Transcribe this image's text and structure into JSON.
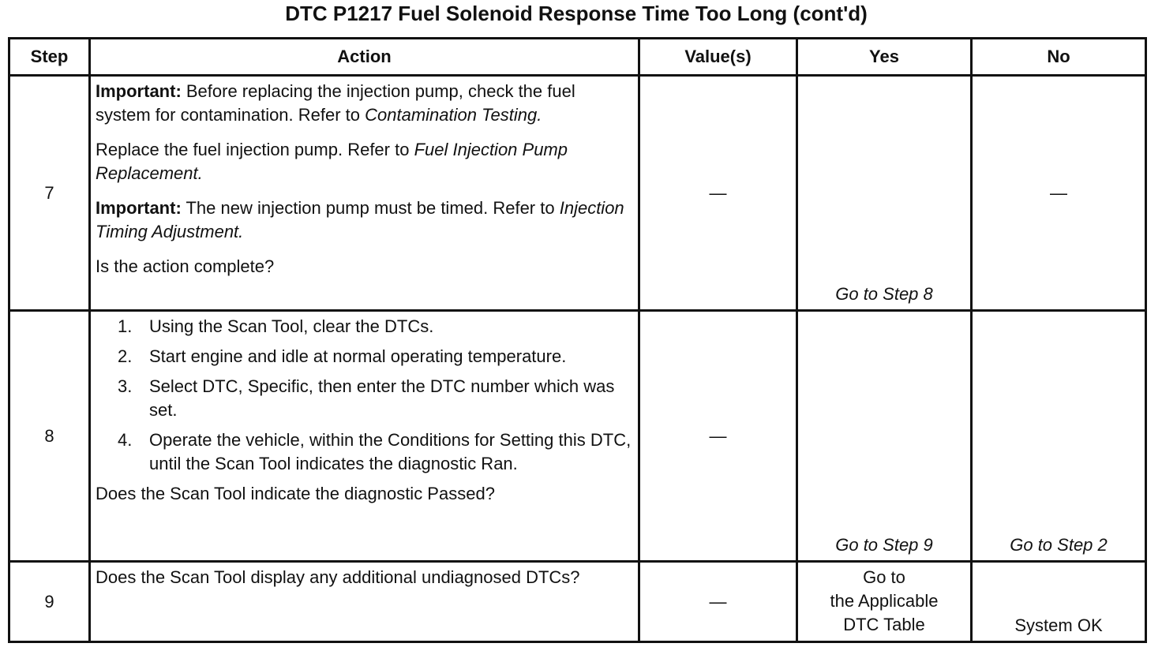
{
  "title": "DTC P1217 Fuel Solenoid Response Time Too Long (cont'd)",
  "table": {
    "headers": [
      "Step",
      "Action",
      "Value(s)",
      "Yes",
      "No"
    ],
    "rows": [
      {
        "step": "7",
        "action": [
          {
            "parts": [
              {
                "bold": "Important:"
              },
              {
                "text": " Before replacing the injection pump, check the fuel system for contamination. Refer to "
              },
              {
                "italic": "Contamination Testing."
              }
            ]
          },
          {
            "parts": [
              {
                "text": "Replace the fuel injection pump. Refer to "
              },
              {
                "italic": "Fuel Injection Pump Replacement."
              }
            ]
          },
          {
            "parts": [
              {
                "bold": "Important:"
              },
              {
                "text": " The new injection pump must be timed. Refer to "
              },
              {
                "italic": "Injection Timing Adjustment."
              }
            ]
          },
          {
            "parts": [
              {
                "text": "Is the action complete?"
              }
            ]
          }
        ],
        "value": [
          {
            "parts": [
              {
                "text": "—"
              }
            ]
          }
        ],
        "yes": [
          {
            "parts": [
              {
                "italic": "Go to Step 8"
              }
            ]
          }
        ],
        "no": [
          {
            "parts": [
              {
                "text": "—"
              }
            ]
          }
        ]
      },
      {
        "step": "8",
        "action": [
          {
            "number": "1.",
            "parts": [
              {
                "text": "Using the Scan Tool, clear the DTCs."
              }
            ]
          },
          {
            "number": "2.",
            "parts": [
              {
                "text": "Start engine and idle at normal operating temperature."
              }
            ]
          },
          {
            "number": "3.",
            "parts": [
              {
                "text": "Select DTC, Specific, then enter the DTC number which was set."
              }
            ]
          },
          {
            "number": "4.",
            "parts": [
              {
                "text": "Operate the vehicle, within the Conditions for Setting this DTC, until the Scan Tool indicates the diagnostic Ran."
              }
            ]
          },
          {
            "parts": [
              {
                "text": "Does the Scan Tool indicate the diagnostic Passed?"
              }
            ]
          }
        ],
        "value": [
          {
            "parts": [
              {
                "text": "—"
              }
            ]
          }
        ],
        "yes": [
          {
            "parts": [
              {
                "italic": "Go to Step 9"
              }
            ]
          }
        ],
        "no": [
          {
            "parts": [
              {
                "italic": "Go to Step 2"
              }
            ]
          }
        ]
      },
      {
        "step": "9",
        "action": [
          {
            "parts": [
              {
                "text": "Does the Scan Tool display any additional undiagnosed DTCs?"
              }
            ]
          }
        ],
        "value": [
          {
            "parts": [
              {
                "text": "—"
              }
            ]
          }
        ],
        "yes": [
          {
            "parts": [
              {
                "text": "Go to"
              }
            ]
          },
          {
            "parts": [
              {
                "text": "the Applicable"
              }
            ]
          },
          {
            "parts": [
              {
                "text": "DTC Table"
              }
            ]
          }
        ],
        "no": [
          {
            "parts": [
              {
                "text": "System OK"
              }
            ]
          }
        ]
      }
    ]
  }
}
